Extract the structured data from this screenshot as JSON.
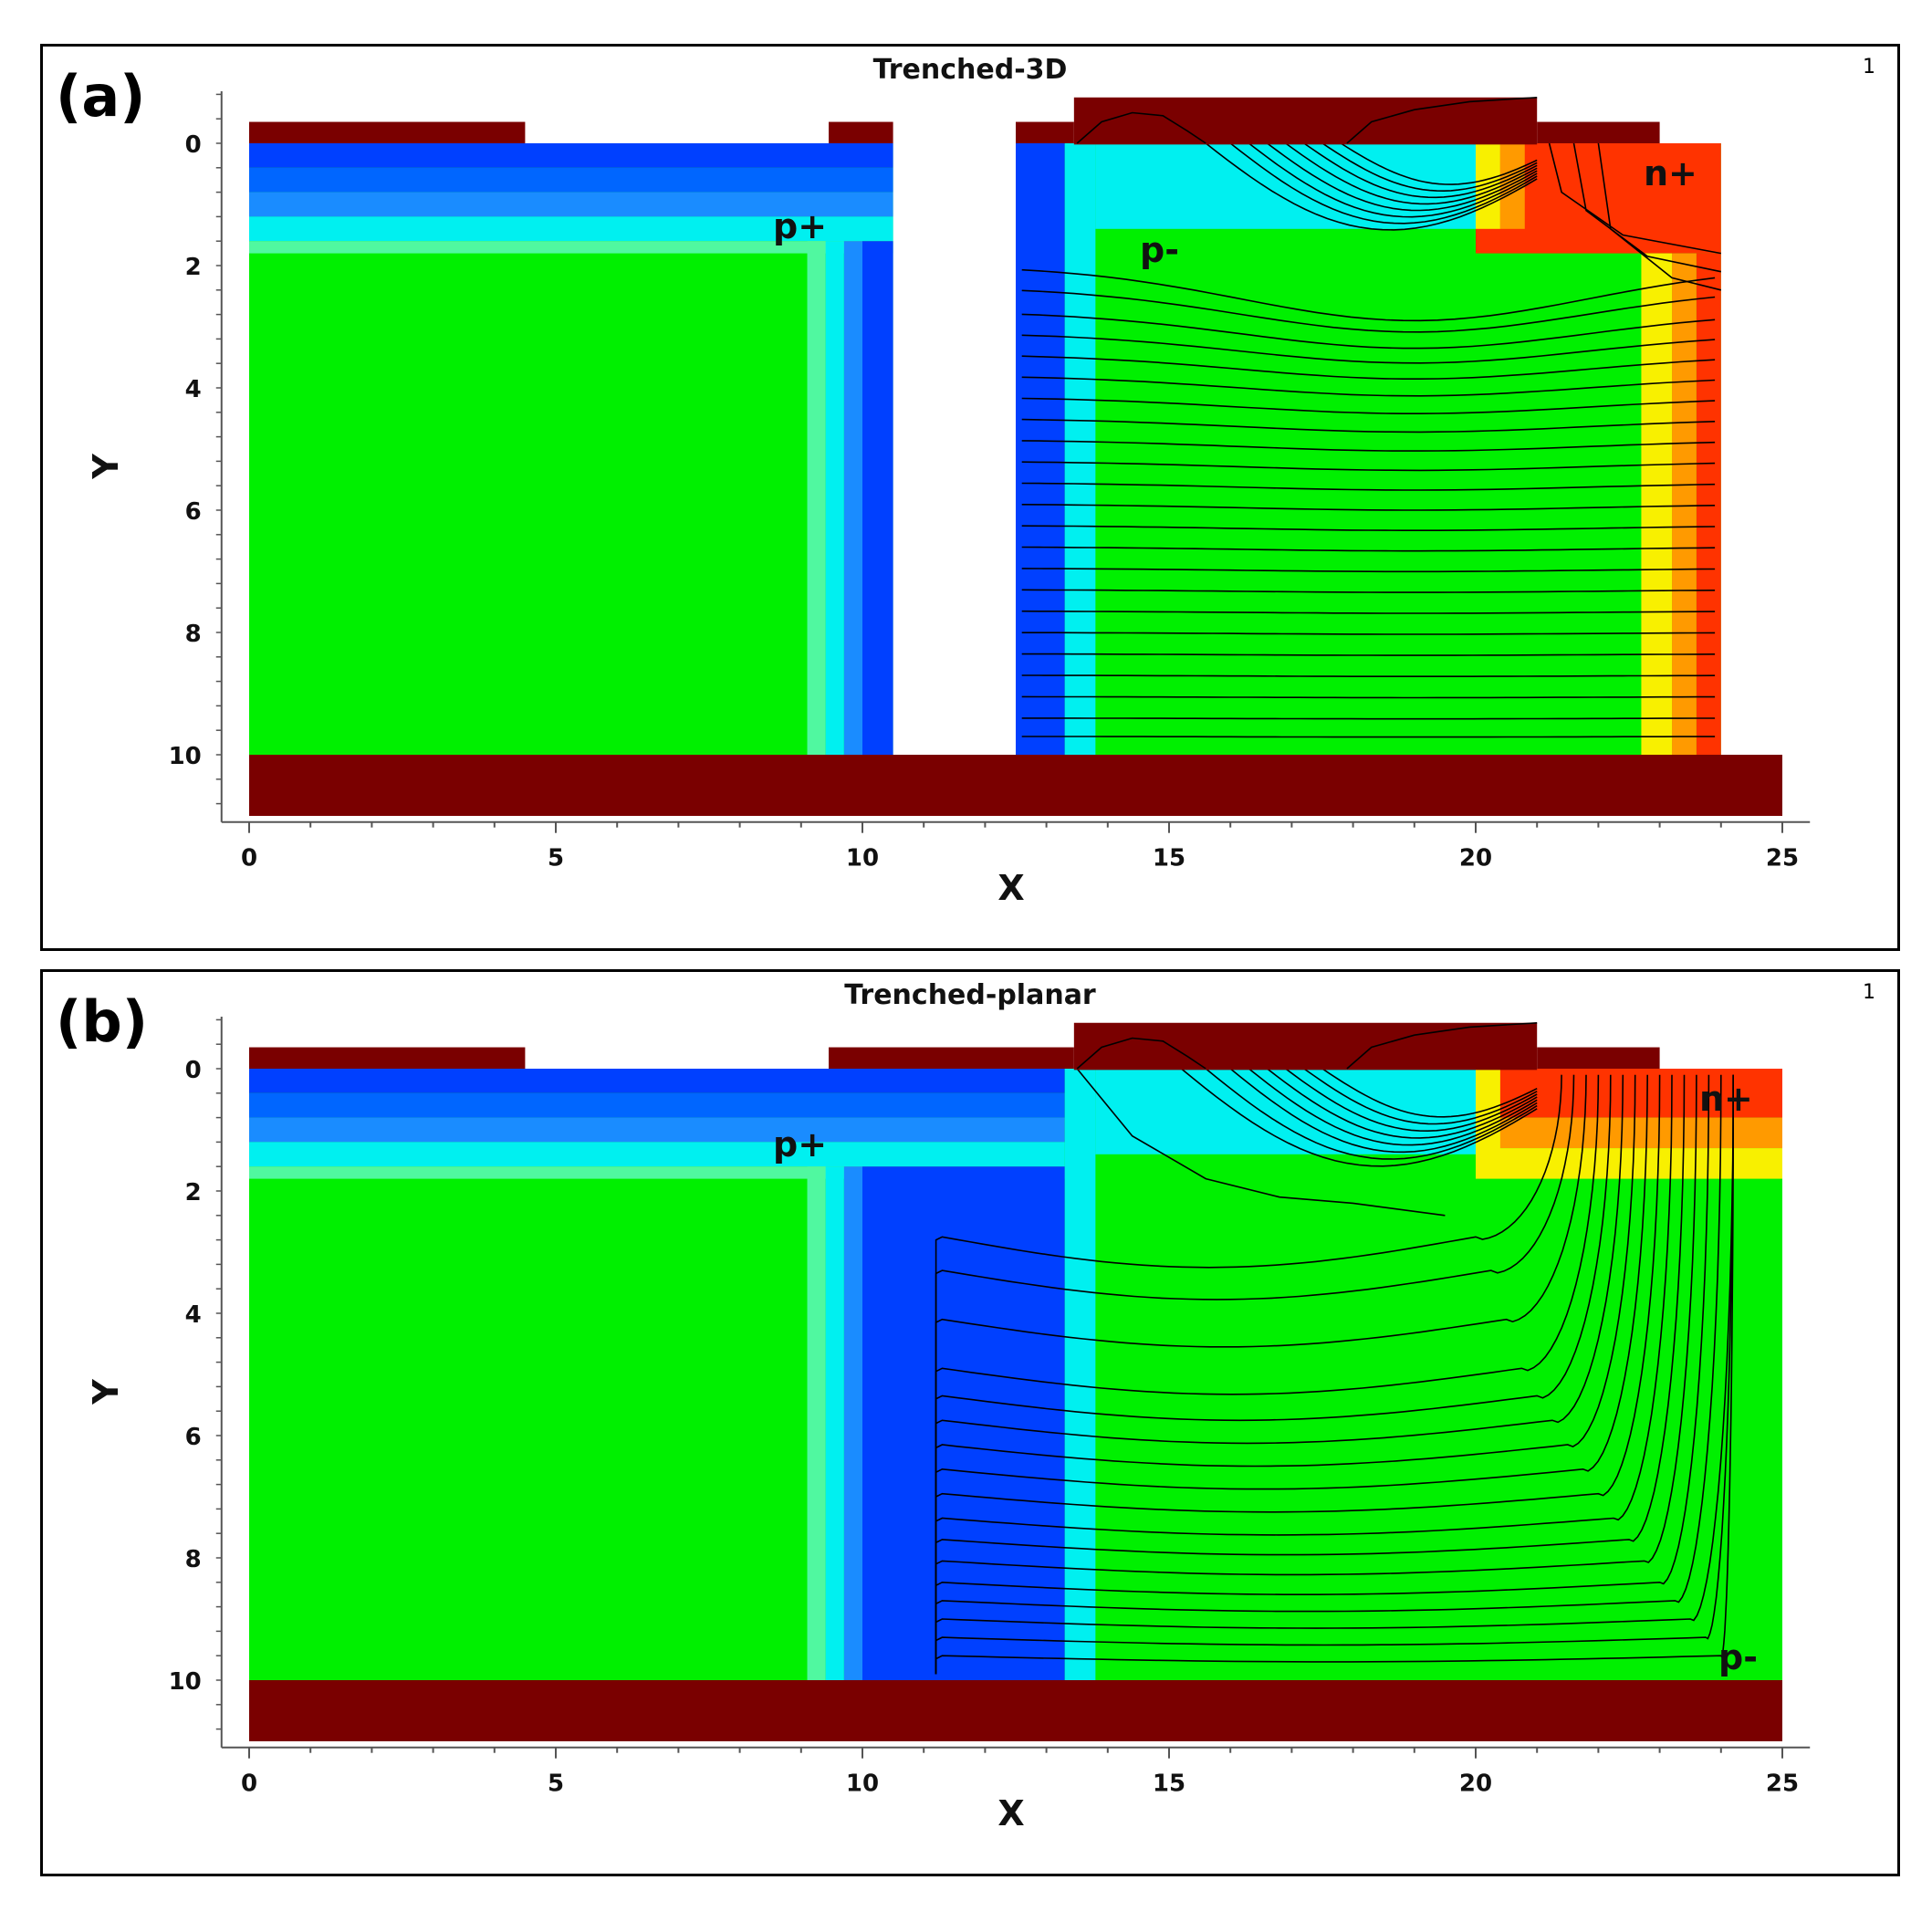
{
  "panels": [
    {
      "id": "a",
      "letter": "(a)",
      "title": "Trenched-3D",
      "index": "1",
      "xlabel": "X",
      "ylabel": "Y",
      "xticks": [
        "0",
        "5",
        "10",
        "15",
        "20",
        "25"
      ],
      "yticks": [
        "0",
        "2",
        "4",
        "6",
        "8",
        "10"
      ],
      "labels": {
        "p_plus": "p+",
        "p_minus": "p-",
        "n_plus": "n+"
      }
    },
    {
      "id": "b",
      "letter": "(b)",
      "title": "Trenched-planar",
      "index": "1",
      "xlabel": "X",
      "ylabel": "Y",
      "xticks": [
        "0",
        "5",
        "10",
        "15",
        "20",
        "25"
      ],
      "yticks": [
        "0",
        "2",
        "4",
        "6",
        "8",
        "10"
      ],
      "labels": {
        "p_plus": "p+",
        "n_plus": "n+",
        "p_minus": "p-"
      }
    }
  ],
  "colors": {
    "electrode": "#7a0000",
    "green": "#00f000",
    "cyan": "#00f0f0",
    "blue": "#0040ff",
    "light_blue": "#1a8cff",
    "yellow": "#f8f000",
    "orange": "#ff9a00",
    "red": "#ff3300",
    "contour": "#000000"
  }
}
